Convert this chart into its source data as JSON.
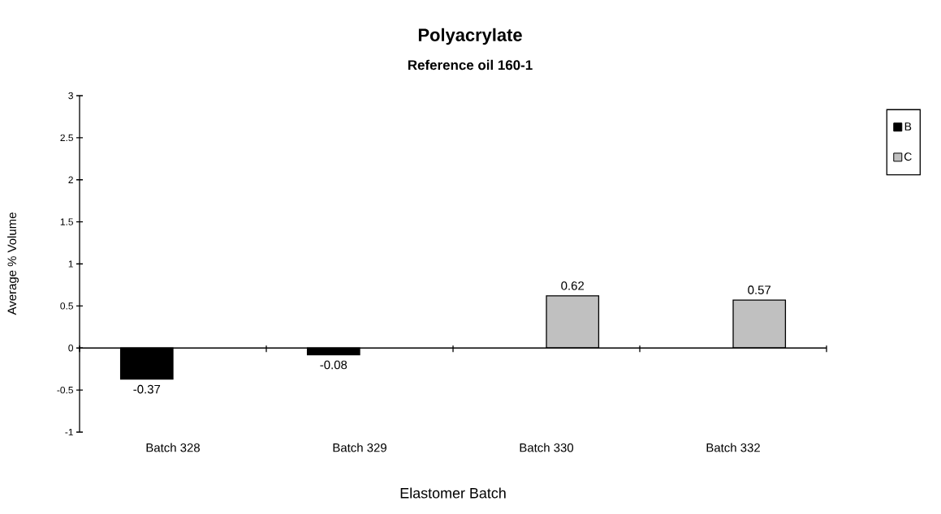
{
  "chart_data": {
    "type": "bar",
    "title": "Polyacrylate",
    "subtitle": "Reference oil 160-1",
    "xlabel": "Elastomer Batch",
    "ylabel": "Average % Volume",
    "categories": [
      "Batch 328",
      "Batch 329",
      "Batch 330",
      "Batch 332"
    ],
    "series": [
      {
        "name": "B",
        "color": "#000000",
        "values": [
          -0.37,
          -0.08,
          null,
          null
        ]
      },
      {
        "name": "C",
        "color": "#c0c0c0",
        "values": [
          null,
          null,
          0.62,
          0.57
        ]
      }
    ],
    "ylim": [
      -1,
      3
    ],
    "yticks": [
      -1,
      -0.5,
      0,
      0.5,
      1,
      1.5,
      2,
      2.5,
      3
    ],
    "data_labels": true,
    "legend": "right"
  }
}
